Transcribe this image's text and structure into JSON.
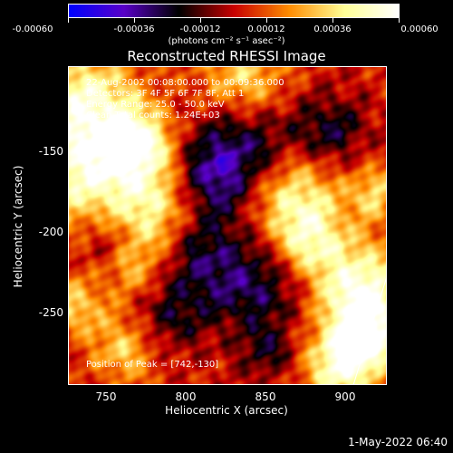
{
  "colorbar": {
    "ticks": [
      "-0.00060",
      "-0.00036",
      "-0.00012",
      "0.00012",
      "0.00036",
      "0.00060"
    ],
    "units": "(photons cm⁻² s⁻¹ asec⁻²)",
    "colors": [
      "#0000ff",
      "#5a00c8",
      "#000000",
      "#c80000",
      "#ff8c00",
      "#ffff96",
      "#ffffff"
    ]
  },
  "title": "Reconstructed RHESSI Image",
  "info": {
    "time": "22-Aug-2002 00:08:00.000 to 00:09:36.000",
    "detectors": "Detectors: 3F 4F 5F 6F 7F 8F, Att 1",
    "energy": "Energy Range: 25.0 - 50.0 keV",
    "counts": "Clean    Total counts: 1.24E+03",
    "peak": "Position of Peak = [742,-130]"
  },
  "axes": {
    "xlabel": "Heliocentric X (arcsec)",
    "ylabel": "Heliocentric Y (arcsec)",
    "xticks": [
      "750",
      "800",
      "850",
      "900"
    ],
    "yticks": [
      "-150",
      "-200",
      "-250"
    ]
  },
  "footer": "1-May-2022 06:40"
}
